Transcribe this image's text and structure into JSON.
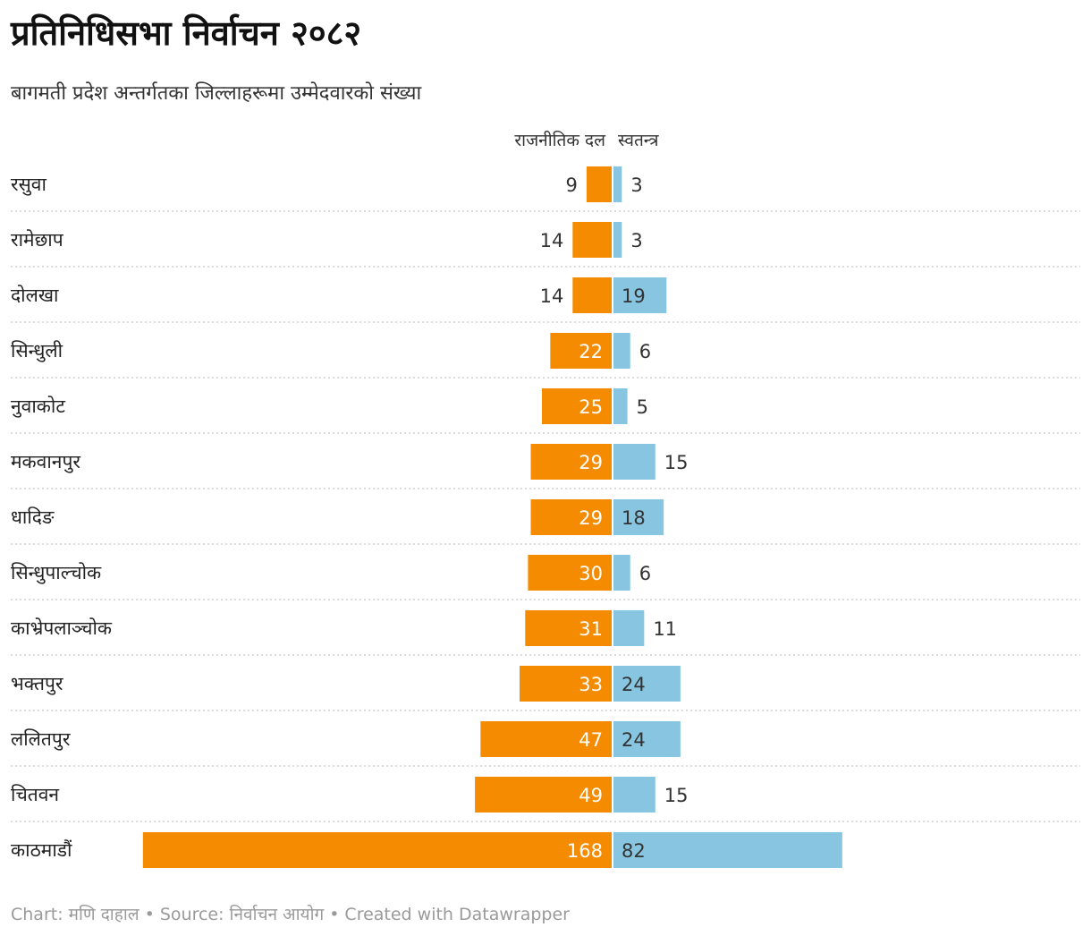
{
  "title": "प्रतिनिधिसभा निर्वाचन २०८२",
  "subtitle": "बागमती प्रदेश अन्तर्गतका जिल्लाहरूमा उम्मेदवारको संख्या",
  "footer": {
    "chart_by": "Chart: मणि दाहाल",
    "source": "Source: निर्वाचन आयोग",
    "created": "Created with Datawrapper",
    "separator": "•"
  },
  "colors": {
    "party": "#f58b00",
    "independent": "#87c5e0",
    "grid": "#c8c8c8",
    "label_inside": "#ffffff",
    "label_outside": "#333333"
  },
  "chart_data": {
    "type": "bar",
    "orientation": "horizontal-diverging",
    "title": "प्रतिनिधिसभा निर्वाचन २०८२",
    "subtitle": "बागमती प्रदेश अन्तर्गतका जिल्लाहरूमा उम्मेदवारको संख्या",
    "categories": [
      "रसुवा",
      "रामेछाप",
      "दोलखा",
      "सिन्धुली",
      "नुवाकोट",
      "मकवानपुर",
      "धादिङ",
      "सिन्धुपाल्चोक",
      "काभ्रेपलाञ्चोक",
      "भक्तपुर",
      "ललितपुर",
      "चितवन",
      "काठमाडौं"
    ],
    "series": [
      {
        "name": "राजनीतिक दल",
        "values": [
          9,
          14,
          14,
          22,
          25,
          29,
          29,
          30,
          31,
          33,
          47,
          49,
          168
        ]
      },
      {
        "name": "स्वतन्त्र",
        "values": [
          3,
          3,
          19,
          6,
          5,
          15,
          18,
          6,
          11,
          24,
          24,
          15,
          82
        ]
      }
    ],
    "xlim": [
      0,
      168
    ],
    "grid": false
  }
}
